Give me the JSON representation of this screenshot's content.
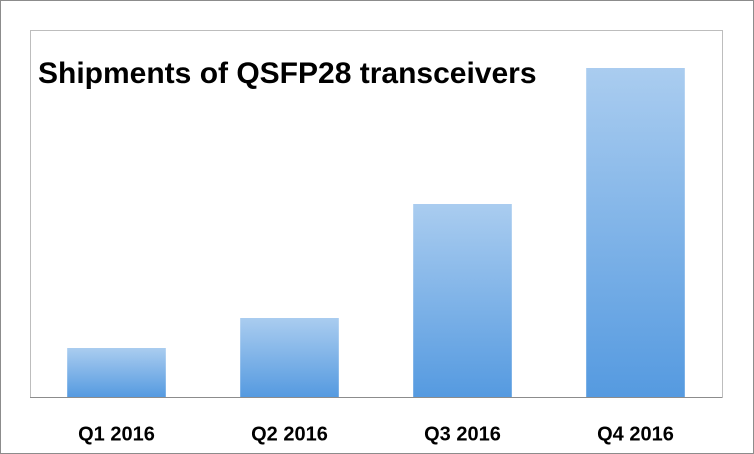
{
  "chart_data": {
    "type": "bar",
    "title": "Shipments of QSFP28 transceivers",
    "categories": [
      "Q1 2016",
      "Q2 2016",
      "Q3 2016",
      "Q4 2016"
    ],
    "values": [
      49,
      79,
      193,
      329
    ],
    "color": "#559ae0",
    "ylim": [
      0,
      367
    ]
  }
}
